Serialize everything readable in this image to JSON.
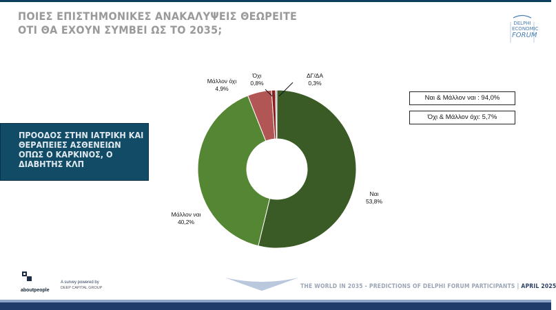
{
  "header": {
    "title_lines": [
      "ΠΟΙΕΣ ΕΠΙΣΤΗΜΟΝΙΚΕΣ ΑΝΑΚΑΛΥΨΕΙΣ ΘΕΩΡΕΙΤΕ",
      "ΟΤΙ ΘΑ ΕΧΟΥΝ ΣΥΜΒΕΙ ΩΣ ΤΟ 2035;"
    ],
    "logo_lines": [
      "DELPHI",
      "ECONOMIC",
      "FORUM"
    ]
  },
  "topic": {
    "lines": [
      "ΠΡΟΟΔΟΣ ΣΤΗΝ ΙΑΤΡΙΚΗ ΚΑΙ",
      "ΘΕΡΑΠΕΙΕΣ ΑΣΘΕΝΕΙΩΝ",
      "ΟΠΩΣ Ο ΚΑΡΚΙΝΟΣ, Ο",
      "ΔΙΑΒΗΤΗΣ ΚΛΠ"
    ]
  },
  "summary": {
    "positive": "Ναι & Μάλλον ναι : 94,0%",
    "negative": "Όχι & Μάλλον όχι: 5,7%"
  },
  "chart_data": {
    "type": "pie",
    "variant": "donut",
    "categories": [
      "Ναι",
      "Μάλλον ναι",
      "Μάλλον όχι",
      "Όχι",
      "ΔΓ/ΔΑ"
    ],
    "values": [
      53.8,
      40.2,
      4.9,
      0.8,
      0.3
    ],
    "value_labels": [
      "53,8%",
      "40,2%",
      "4,9%",
      "0,8%",
      "0,3%"
    ],
    "colors": [
      "#3a5b25",
      "#558633",
      "#b25555",
      "#8b1d1d",
      "#a9a9a9"
    ]
  },
  "footer": {
    "brand": "aboutpeople",
    "credit_line1": "A survey powered by",
    "credit_line2": "DEEP CAPITAL GROUP",
    "tagline": "THE WORLD IN 2035 - PREDICTIONS OF DELPHI FORUM PARTICIPANTS",
    "separator": "|",
    "date": "APRIL 2025"
  }
}
